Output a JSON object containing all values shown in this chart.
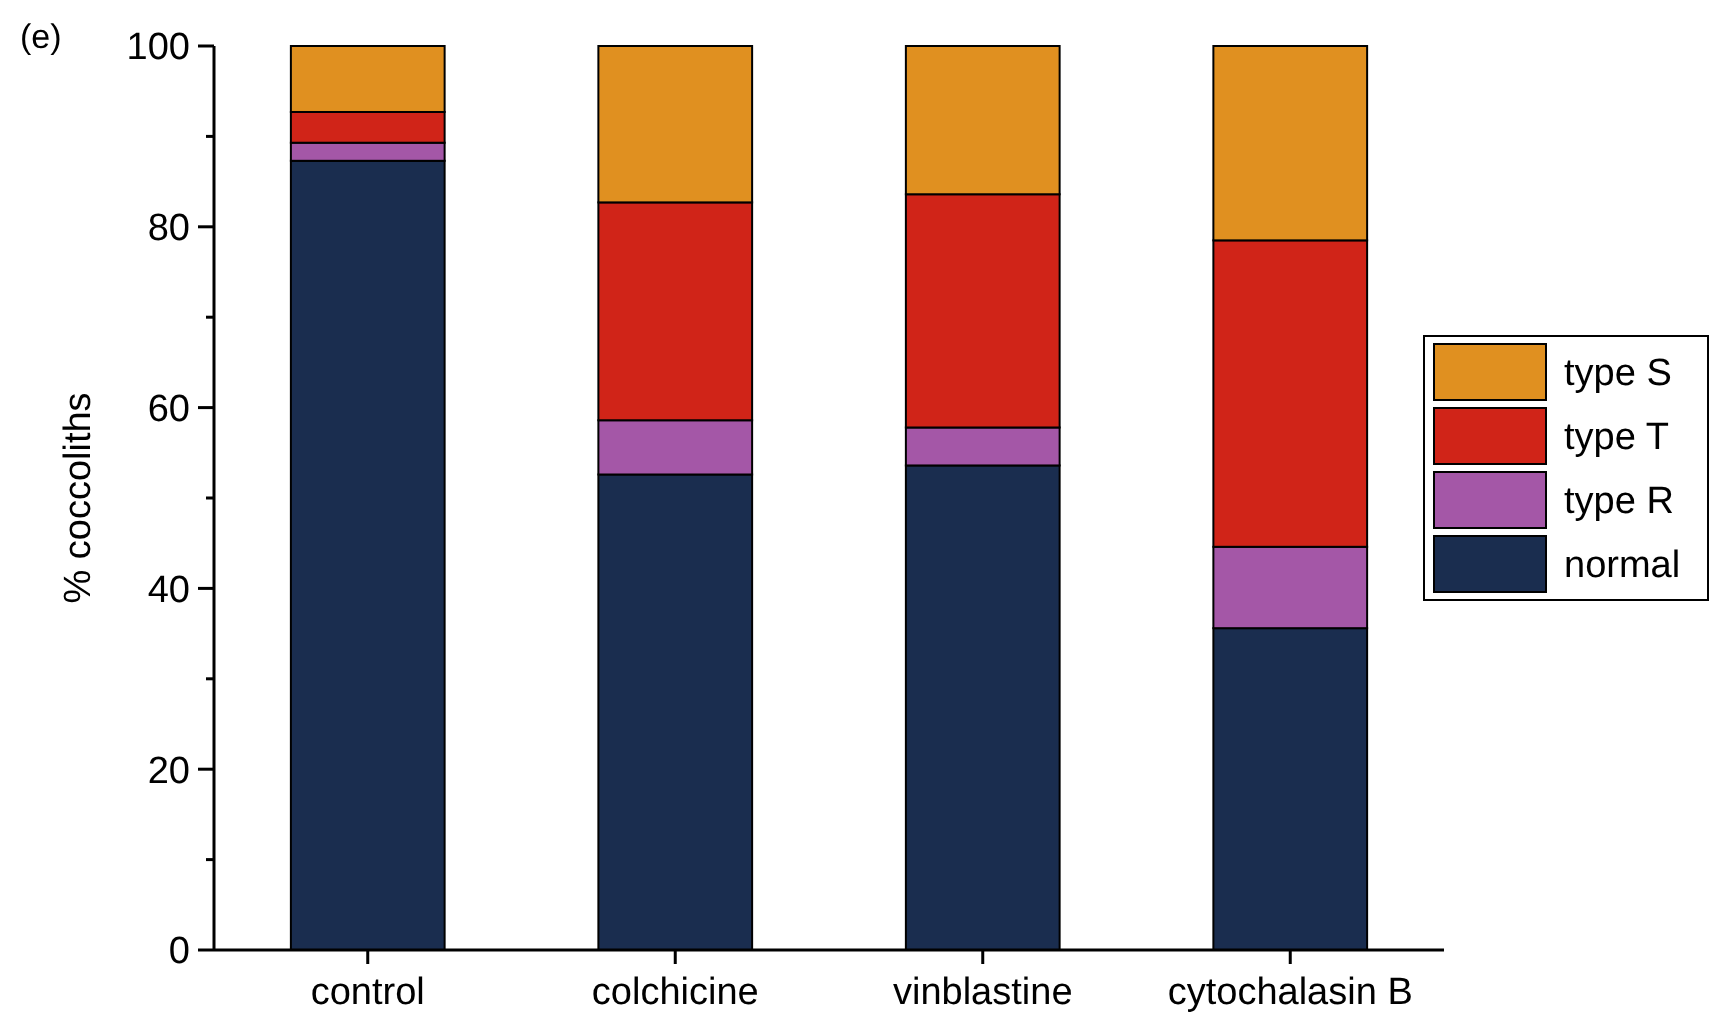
{
  "chart_data": {
    "type": "bar",
    "stacked": true,
    "ylabel": "% coccoliths",
    "annotations": [
      "(e)"
    ],
    "categories": [
      "control",
      "colchicine",
      "vinblastine",
      "cytochalasin B"
    ],
    "series": [
      {
        "name": "normal",
        "color": "#1a2d4f",
        "values": [
          87.3,
          52.6,
          53.6,
          35.6
        ]
      },
      {
        "name": "type R",
        "color": "#a457a7",
        "values": [
          2.0,
          6.0,
          4.2,
          9.0
        ]
      },
      {
        "name": "type T",
        "color": "#d02418",
        "values": [
          3.4,
          24.1,
          25.8,
          33.9
        ]
      },
      {
        "name": "type S",
        "color": "#e09020",
        "values": [
          7.3,
          17.3,
          16.4,
          21.5
        ]
      }
    ],
    "ylim": [
      0,
      100
    ],
    "yticks": [
      0,
      {
        "value": 10,
        "label": null
      },
      20,
      {
        "value": 30,
        "label": null
      },
      40,
      {
        "value": 50,
        "label": null
      },
      60,
      {
        "value": 70,
        "label": null
      },
      80,
      {
        "value": 90,
        "label": null
      },
      100
    ],
    "grid": false,
    "legend": "right"
  }
}
